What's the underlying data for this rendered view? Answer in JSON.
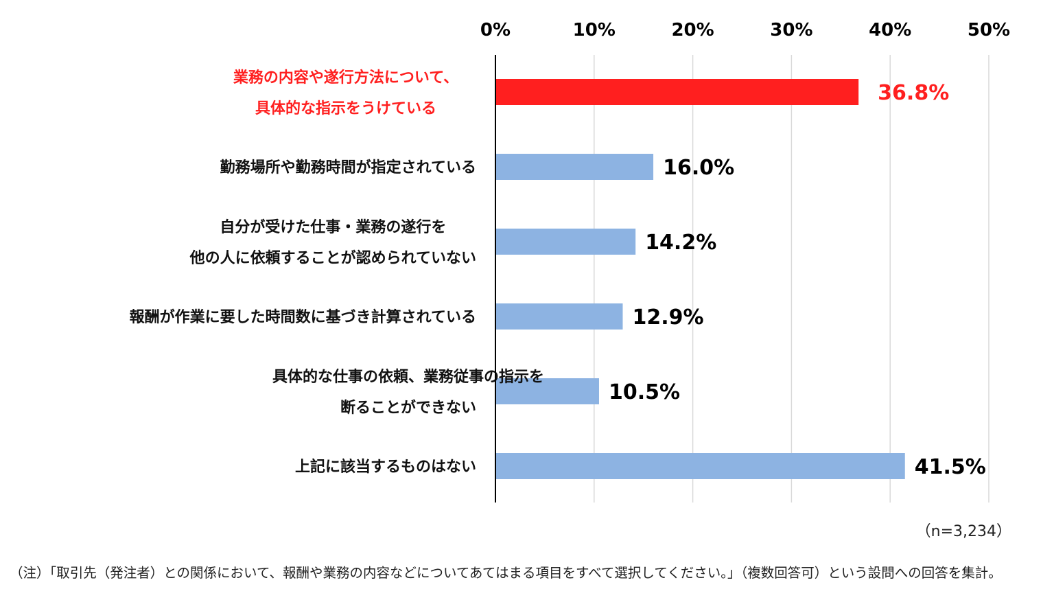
{
  "chart_data": {
    "type": "bar",
    "orientation": "horizontal",
    "xlim": [
      0,
      50
    ],
    "ticks": [
      "0%",
      "10%",
      "20%",
      "30%",
      "40%",
      "50%"
    ],
    "tick_values": [
      0,
      10,
      20,
      30,
      40,
      50
    ],
    "grid": true,
    "categories": [
      [
        "業務の内容や遂行方法について、",
        "具体的な指示をうけている"
      ],
      [
        "勤務場所や勤務時間が指定されている"
      ],
      [
        "自分が受けた仕事・業務の遂行を",
        "他の人に依頼することが認められていない"
      ],
      [
        "報酬が作業に要した時間数に基づき計算されている"
      ],
      [
        "具体的な仕事の依頼、業務従事の指示を",
        "断ることができない"
      ],
      [
        "上記に該当するものはない"
      ]
    ],
    "values": [
      36.8,
      16.0,
      14.2,
      12.9,
      10.5,
      41.5
    ],
    "value_labels": [
      "36.8%",
      "16.0%",
      "14.2%",
      "12.9%",
      "10.5%",
      "41.5%"
    ],
    "highlight_index": 0,
    "colors": {
      "bar": "#8db3e2",
      "highlight": "#ff1f1f",
      "grid": "#d9d9d9",
      "axis": "#000000"
    }
  },
  "sample_size": "（n=3,234）",
  "footnote": "（注）「取引先（発注者）との関係において、報酬や業務の内容などについてあてはまる項目をすべて選択してください。」（複数回答可）という設問への回答を集計。"
}
